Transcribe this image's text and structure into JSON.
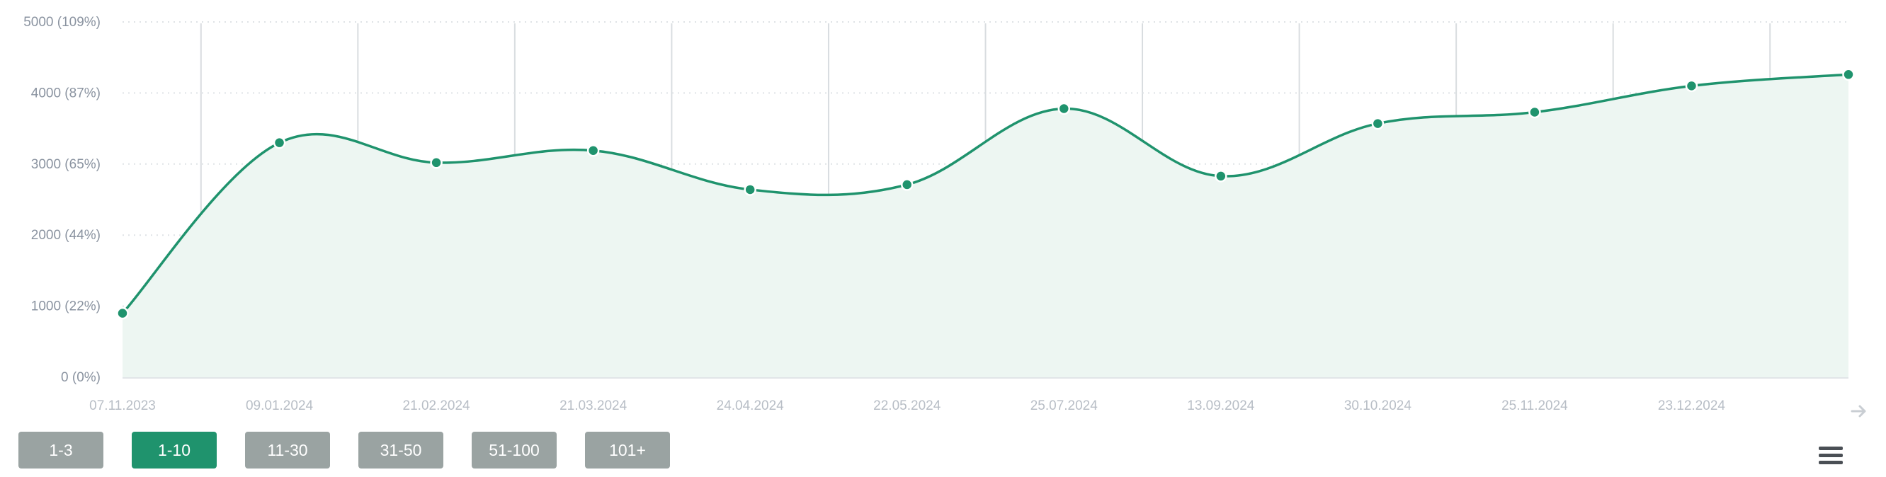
{
  "chart_data": {
    "type": "area",
    "x": [
      "07.11.2023",
      "09.01.2024",
      "21.02.2024",
      "21.03.2024",
      "24.04.2024",
      "22.05.2024",
      "25.07.2024",
      "13.09.2024",
      "30.10.2024",
      "25.11.2024",
      "23.12.2024",
      ""
    ],
    "series": [
      {
        "values": [
          900,
          3300,
          3020,
          3190,
          2640,
          2710,
          3780,
          2830,
          3570,
          3730,
          4100,
          4260
        ]
      }
    ],
    "yticks": [
      "0 (0%)",
      "1000 (22%)",
      "2000 (44%)",
      "3000 (65%)",
      "4000 (87%)",
      "5000 (109%)"
    ],
    "ylim": [
      0,
      5000
    ],
    "grid": true,
    "colors": {
      "line": "#1f936d",
      "fill": "#edf6f2",
      "grid": "#dfe3e6",
      "vgrid": "#d9dde0"
    }
  },
  "filters": [
    {
      "label": "1-3",
      "active": false
    },
    {
      "label": "1-10",
      "active": true
    },
    {
      "label": "11-30",
      "active": false
    },
    {
      "label": "31-50",
      "active": false
    },
    {
      "label": "51-100",
      "active": false
    },
    {
      "label": "101+",
      "active": false
    }
  ],
  "icons": {
    "menu": "hamburger-menu-icon",
    "next": "arrow-right-icon"
  }
}
